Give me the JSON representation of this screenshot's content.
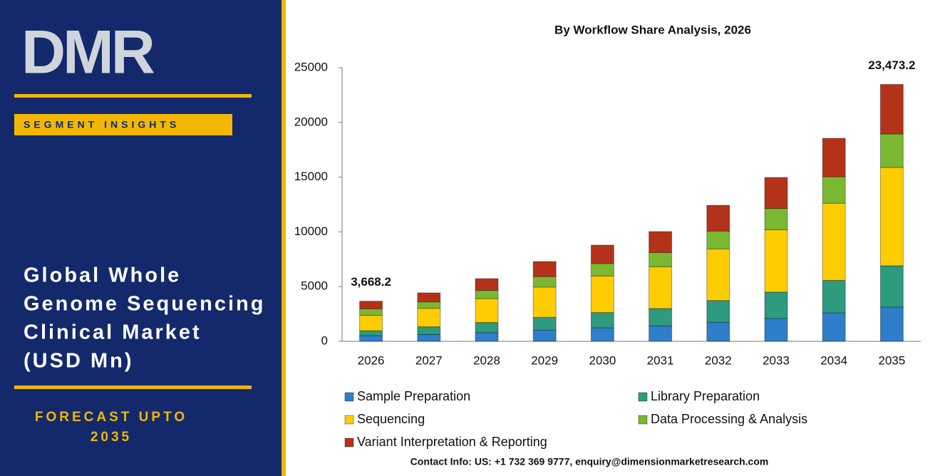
{
  "sidebar": {
    "logo": "DMR",
    "badge": "SEGMENT INSIGHTS",
    "title_lines": [
      "Global Whole",
      "Genome Sequencing",
      "Clinical Market",
      "(USD Mn)"
    ],
    "forecast_lines": [
      "FORECAST UPTO",
      "2035"
    ]
  },
  "contact": "Contact Info: US: +1 732 369 9777, enquiry@dimensionmarketresearch.com",
  "chart_data": {
    "type": "stacked_bar",
    "title": "By Workflow Share Analysis, 2026",
    "categories": [
      "2026",
      "2027",
      "2028",
      "2029",
      "2030",
      "2031",
      "2032",
      "2033",
      "2034",
      "2035"
    ],
    "series": [
      {
        "name": "Sample Preparation",
        "color": "#2f7ec9",
        "values": [
          520,
          620,
          800,
          1020,
          1230,
          1400,
          1740,
          2100,
          2600,
          3125
        ]
      },
      {
        "name": "Library Preparation",
        "color": "#2e9a7e",
        "values": [
          450,
          710,
          920,
          1170,
          1400,
          1600,
          1990,
          2400,
          2970,
          3775
        ]
      },
      {
        "name": "Sequencing",
        "color": "#ffcc00",
        "values": [
          1400,
          1690,
          2180,
          2770,
          3340,
          3810,
          4720,
          5690,
          7050,
          8985
        ]
      },
      {
        "name": "Data Processing & Analysis",
        "color": "#7bb832",
        "values": [
          600,
          580,
          750,
          950,
          1140,
          1300,
          1620,
          1950,
          2410,
          3060
        ]
      },
      {
        "name": "Variant Interpretation & Reporting",
        "color": "#b5321a",
        "values": [
          698.2,
          830,
          1080,
          1380,
          1680,
          1920,
          2360,
          2830,
          3520,
          4528.2
        ]
      }
    ],
    "annotations": [
      {
        "category": "2026",
        "text": "3,668.2"
      },
      {
        "category": "2035",
        "text": "23,473.2"
      }
    ],
    "ylim": [
      0,
      25000
    ],
    "yticks": [
      0,
      5000,
      10000,
      15000,
      20000,
      25000
    ],
    "grid": false
  }
}
